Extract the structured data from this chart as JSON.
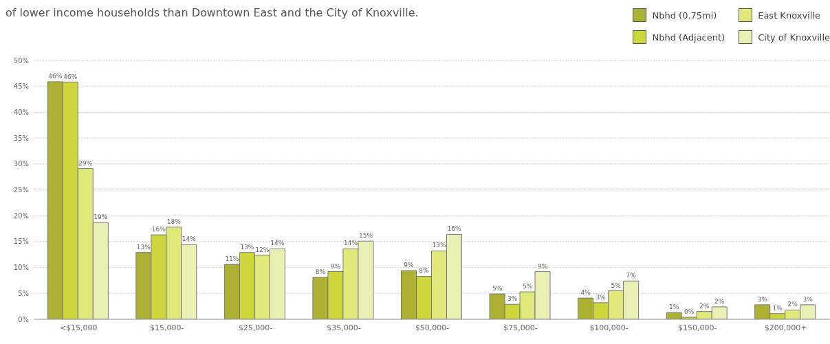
{
  "chart_data": {
    "type": "bar",
    "title": "of lower income households than Downtown East and the City of Knoxville.",
    "categories": [
      "<$15,000",
      "$15,000-",
      "$25,000-",
      "$35,000-",
      "$50,000-",
      "$75,000-",
      "$100,000-",
      "$150,000-",
      "$200,000+"
    ],
    "series": [
      {
        "name": "Nbhd (0.75mi)",
        "color": "#adb133",
        "values": [
          45.9,
          12.9,
          10.6,
          8.1,
          9.4,
          4.9,
          4.1,
          1.3,
          2.8
        ],
        "value_labels": [
          "46%",
          "13%",
          "11%",
          "8%",
          "9%",
          "5%",
          "4%",
          "1%",
          "3%"
        ]
      },
      {
        "name": "Nbhd (Adjacent)",
        "color": "#cdd63b",
        "values": [
          45.8,
          16.3,
          12.9,
          9.2,
          8.3,
          2.9,
          3.2,
          0.4,
          1.1
        ],
        "value_labels": [
          "46%",
          "16%",
          "13%",
          "9%",
          "8%",
          "3%",
          "3%",
          "0%",
          "1%"
        ]
      },
      {
        "name": "East Knoxville",
        "color": "#e1e87a",
        "values": [
          29.1,
          17.8,
          12.4,
          13.6,
          13.2,
          5.3,
          5.5,
          1.5,
          1.8
        ],
        "value_labels": [
          "29%",
          "18%",
          "12%",
          "14%",
          "13%",
          "5%",
          "5%",
          "2%",
          "2%"
        ]
      },
      {
        "name": "City of Knoxville",
        "color": "#eaf0b4",
        "values": [
          18.7,
          14.4,
          13.6,
          15.1,
          16.4,
          9.2,
          7.4,
          2.4,
          2.8
        ],
        "value_labels": [
          "19%",
          "14%",
          "14%",
          "15%",
          "16%",
          "9%",
          "7%",
          "2%",
          "3%"
        ]
      }
    ],
    "ylim": [
      0,
      50
    ],
    "yticks": [
      {
        "value": 0,
        "label": "0%"
      },
      {
        "value": 5,
        "label": "5%"
      },
      {
        "value": 10,
        "label": "10%"
      },
      {
        "value": 15,
        "label": "15%"
      },
      {
        "value": 20,
        "label": "20%"
      },
      {
        "value": 25,
        "label": "25%"
      },
      {
        "value": 30,
        "label": "30%"
      },
      {
        "value": 35,
        "label": "35%"
      },
      {
        "value": 40,
        "label": "40%"
      },
      {
        "value": 45,
        "label": "45%"
      },
      {
        "value": 50,
        "label": "50%"
      }
    ],
    "grid": "y",
    "legend": "top right"
  }
}
